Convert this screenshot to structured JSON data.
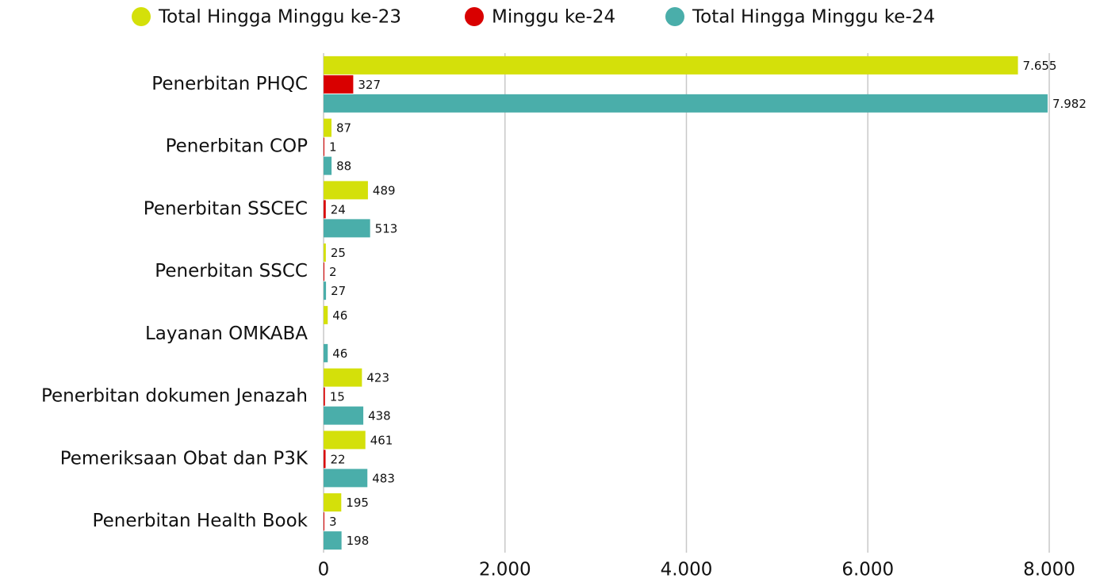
{
  "chart_data": {
    "type": "barh",
    "categories": [
      "Penerbitan PHQC",
      "Penerbitan COP",
      "Penerbitan SSCEC",
      "Penerbitan SSCC",
      "Layanan OMKABA",
      "Penerbitan dokumen Jenazah",
      "Pemeriksaan Obat dan P3K",
      "Penerbitan Health Book"
    ],
    "series": [
      {
        "name": "Total Hingga Minggu ke-23",
        "color": "#d4e00a",
        "values": [
          7655,
          87,
          489,
          25,
          46,
          423,
          461,
          195
        ],
        "value_labels": [
          "7.655",
          "87",
          "489",
          "25",
          "46",
          "423",
          "461",
          "195"
        ]
      },
      {
        "name": "Minggu ke-24",
        "color": "#d90000",
        "values": [
          327,
          1,
          24,
          2,
          null,
          15,
          22,
          3
        ]
      },
      {
        "name": "Total Hingga Minggu ke-24",
        "color": "#4aaeaa",
        "values": [
          7982,
          88,
          513,
          27,
          46,
          438,
          483,
          198
        ],
        "value_labels": [
          "7.982",
          "88",
          "513",
          "27",
          "46",
          "438",
          "483",
          "198"
        ]
      }
    ],
    "xlim": [
      0,
      8000
    ],
    "xticks": [
      0,
      {
        "value": 2000,
        "label": "2.000"
      },
      {
        "value": 4000,
        "label": "4.000"
      },
      {
        "value": 6000,
        "label": "6.000"
      },
      {
        "value": 8000,
        "label": "8.000"
      }
    ],
    "grid": true,
    "legend": "top"
  }
}
